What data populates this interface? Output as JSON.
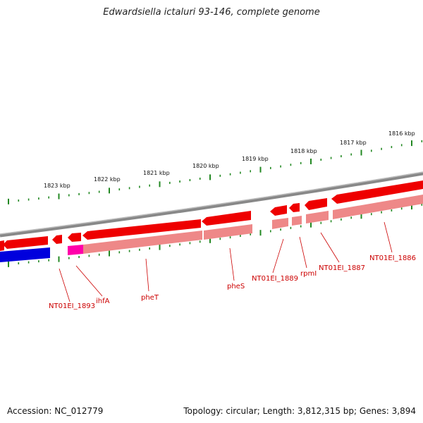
{
  "title": "Edwardsiella ictaluri 93-146, complete genome",
  "footer": {
    "accession": "Accession: NC_012779",
    "summary": "Topology: circular; Length: 3,812,315 bp; Genes: 3,894"
  },
  "scale_labels": [
    "1823 kbp",
    "1822 kbp",
    "1821 kbp",
    "1820 kbp",
    "1819 kbp",
    "1818 kbp",
    "1817 kbp",
    "1816 kbp"
  ],
  "gene_labels": [
    "NT01EI_1893",
    "ihfA",
    "pheT",
    "pheS",
    "NT01EI_1889",
    "rpmI",
    "NT01EI_1887",
    "NT01EI_1886"
  ],
  "colors": {
    "backbone": "#888888",
    "gene_cds": "#ee0000",
    "gene_light": "#ee8888",
    "gene_reverse": "#0000dd",
    "gene_magenta": "#ff00aa",
    "tick": "#228822",
    "label": "#cc0000"
  }
}
